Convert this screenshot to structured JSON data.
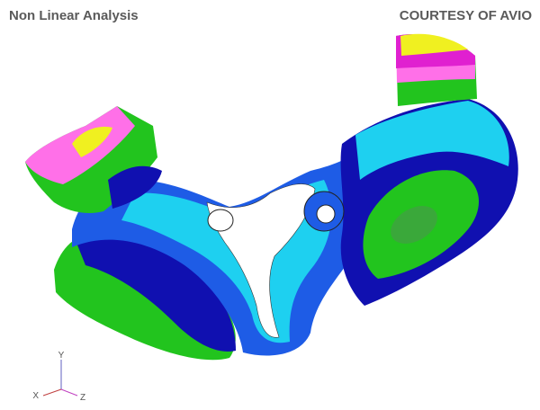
{
  "header": {
    "title": "Non Linear Analysis",
    "credit": "COURTESY OF AVIO"
  },
  "triad": {
    "y": "Y",
    "x": "X",
    "z": "Z"
  }
}
